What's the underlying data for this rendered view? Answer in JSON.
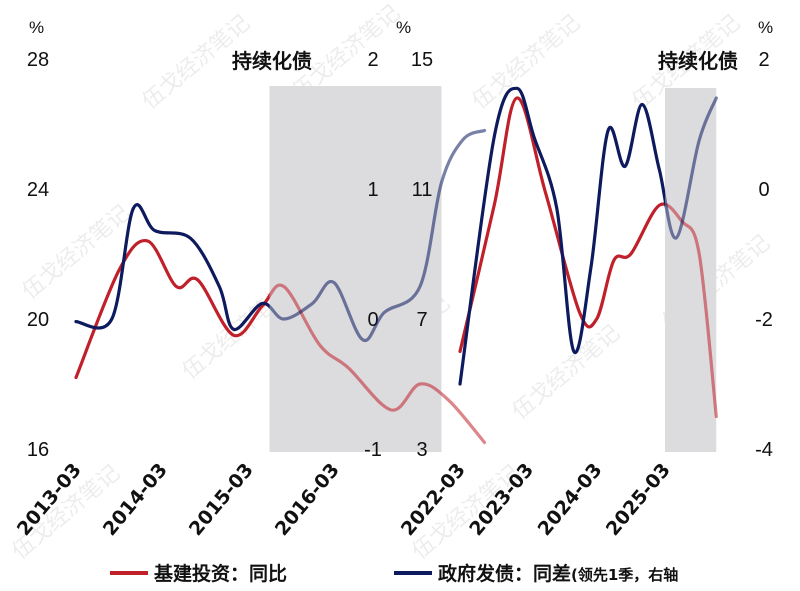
{
  "colors": {
    "red": "#c0202a",
    "navy": "#0d1a5e",
    "shade": "#dcdcdf"
  },
  "legend": {
    "red_label": "基建投资：同比",
    "navy_label": "政府发债：同差",
    "navy_note": "(领先1季，右轴"
  },
  "watermark": "伍戈经济笔记",
  "chart_data": [
    {
      "type": "line",
      "shaded_label": "持续化债",
      "shaded_range": [
        "2015-06",
        "2017-06"
      ],
      "left_axis": {
        "unit": "%",
        "ylim": [
          16,
          28
        ],
        "ticks": [
          "28",
          "24",
          "20",
          "16"
        ]
      },
      "right_axis": {
        "unit": "",
        "ylim": [
          -1,
          2
        ],
        "ticks": [
          "2",
          "1",
          "0",
          "-1"
        ]
      },
      "x_ticks": [
        "2013-03",
        "2014-03",
        "2015-03",
        "2016-03"
      ],
      "series": [
        {
          "name": "基建投资：同比",
          "axis": "left",
          "color": "red",
          "points": [
            [
              "2013-03",
              18.2
            ],
            [
              "2013-09",
              21.5
            ],
            [
              "2014-01",
              22.4
            ],
            [
              "2014-05",
              21.0
            ],
            [
              "2014-08",
              21.2
            ],
            [
              "2015-01",
              19.5
            ],
            [
              "2015-05",
              20.4
            ],
            [
              "2015-08",
              21.0
            ],
            [
              "2016-01",
              19.2
            ],
            [
              "2016-05",
              18.5
            ],
            [
              "2016-11",
              17.2
            ],
            [
              "2017-03",
              18.0
            ],
            [
              "2017-07",
              17.5
            ],
            [
              "2017-12",
              16.2
            ]
          ]
        },
        {
          "name": "政府发债：同差",
          "axis": "right",
          "color": "navy",
          "points": [
            [
              "2013-03",
              -0.02
            ],
            [
              "2013-08",
              0.0
            ],
            [
              "2013-11",
              0.85
            ],
            [
              "2014-02",
              0.68
            ],
            [
              "2014-07",
              0.62
            ],
            [
              "2014-11",
              0.25
            ],
            [
              "2015-01",
              -0.08
            ],
            [
              "2015-05",
              0.12
            ],
            [
              "2015-08",
              0.0
            ],
            [
              "2015-12",
              0.12
            ],
            [
              "2016-03",
              0.28
            ],
            [
              "2016-07",
              -0.16
            ],
            [
              "2016-10",
              0.05
            ],
            [
              "2017-03",
              0.25
            ],
            [
              "2017-06",
              1.05
            ],
            [
              "2017-09",
              1.38
            ],
            [
              "2017-12",
              1.45
            ]
          ]
        }
      ]
    },
    {
      "type": "line",
      "shaded_label": "持续化债",
      "shaded_range": [
        "2025-03",
        "2025-12"
      ],
      "left_axis": {
        "unit": "%",
        "ylim": [
          3,
          15
        ],
        "ticks": [
          "15",
          "11",
          "7",
          "3"
        ]
      },
      "right_axis": {
        "unit": "%",
        "ylim": [
          -4,
          2
        ],
        "ticks": [
          "2",
          "0",
          "-2",
          "-4"
        ]
      },
      "x_ticks": [
        "2022-03",
        "2023-03",
        "2024-03",
        "2025-03"
      ],
      "series": [
        {
          "name": "基建投资：同比",
          "axis": "left",
          "color": "red",
          "points": [
            [
              "2022-03",
              6.0
            ],
            [
              "2022-09",
              10.5
            ],
            [
              "2023-01",
              13.8
            ],
            [
              "2023-06",
              10.9
            ],
            [
              "2023-12",
              7.2
            ],
            [
              "2024-03",
              7.0
            ],
            [
              "2024-06",
              8.8
            ],
            [
              "2024-09",
              9.0
            ],
            [
              "2025-02",
              10.5
            ],
            [
              "2025-06",
              10.0
            ],
            [
              "2025-09",
              9.0
            ],
            [
              "2025-12",
              4.0
            ]
          ]
        },
        {
          "name": "政府发债：同差",
          "axis": "right",
          "color": "navy",
          "points": [
            [
              "2022-03",
              -3.0
            ],
            [
              "2022-09",
              0.8
            ],
            [
              "2023-01",
              1.55
            ],
            [
              "2023-04",
              0.8
            ],
            [
              "2023-08",
              -0.3
            ],
            [
              "2023-11",
              -2.5
            ],
            [
              "2024-02",
              -1.2
            ],
            [
              "2024-05",
              0.9
            ],
            [
              "2024-08",
              0.35
            ],
            [
              "2024-11",
              1.3
            ],
            [
              "2025-02",
              0.3
            ],
            [
              "2025-05",
              -0.75
            ],
            [
              "2025-09",
              0.75
            ],
            [
              "2025-12",
              1.4
            ]
          ]
        }
      ]
    }
  ]
}
